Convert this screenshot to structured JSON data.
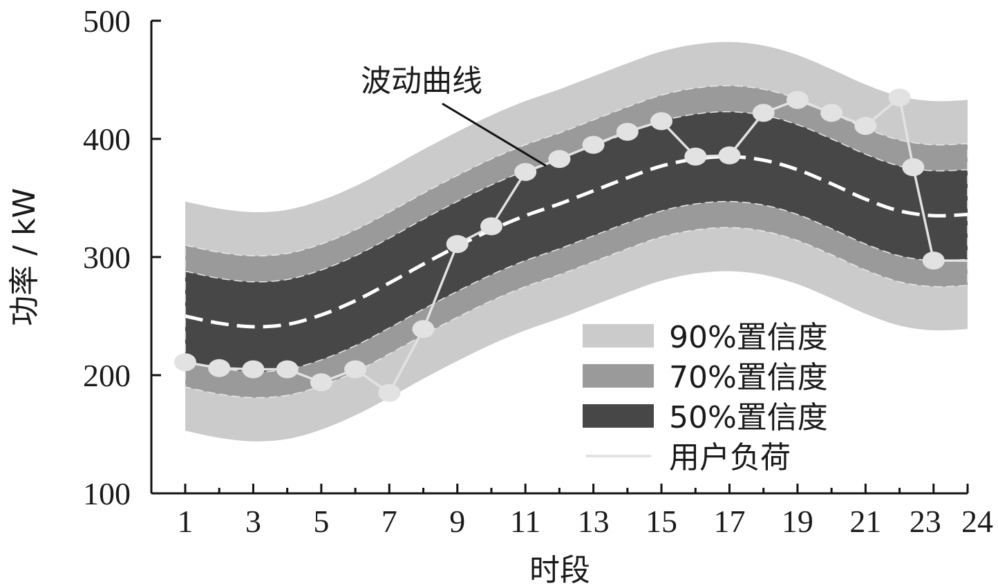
{
  "chart_data": {
    "type": "area",
    "xlabel": "时段",
    "ylabel": "功率 / kW",
    "ylim": [
      100,
      500
    ],
    "xlim": [
      1,
      24
    ],
    "yticks": [
      "100",
      "200",
      "300",
      "400",
      "500"
    ],
    "xticks": [
      {
        "value": 1,
        "label": "1"
      },
      {
        "value": 3,
        "label": "3"
      },
      {
        "value": 5,
        "label": "5"
      },
      {
        "value": 7,
        "label": "7"
      },
      {
        "value": 9,
        "label": "9"
      },
      {
        "value": 11,
        "label": "11"
      },
      {
        "value": 13,
        "label": "13"
      },
      {
        "value": 15,
        "label": "15"
      },
      {
        "value": 17,
        "label": "17"
      },
      {
        "value": 19,
        "label": "19"
      },
      {
        "value": 21,
        "label": "21"
      },
      {
        "value": 23,
        "label": "23"
      },
      {
        "value": 24,
        "label": "24"
      }
    ],
    "x": [
      1,
      2,
      3,
      4,
      5,
      6,
      7,
      8,
      9,
      10,
      11,
      12,
      13,
      14,
      15,
      16,
      17,
      18,
      19,
      20,
      21,
      22,
      23,
      24
    ],
    "center": [
      250,
      244,
      241,
      243,
      251,
      263,
      278,
      294,
      309,
      323,
      335,
      345,
      356,
      367,
      377,
      383,
      385,
      382,
      374,
      362,
      349,
      339,
      335,
      336
    ],
    "bands": [
      {
        "name": "90%置信度",
        "color": "#cbcbcb",
        "half_width": 97
      },
      {
        "name": "70%置信度",
        "color": "#9a9a9a",
        "half_width": 60
      },
      {
        "name": "50%置信度",
        "color": "#474747",
        "half_width": 38
      }
    ],
    "load": {
      "name": "用户负荷",
      "color": "#e2e2e2",
      "points": [
        {
          "x": 1,
          "y": 211
        },
        {
          "x": 2,
          "y": 206
        },
        {
          "x": 3,
          "y": 205
        },
        {
          "x": 4,
          "y": 205
        },
        {
          "x": 5,
          "y": 194
        },
        {
          "x": 6,
          "y": 205
        },
        {
          "x": 7,
          "y": 185
        },
        {
          "x": 8,
          "y": 239
        },
        {
          "x": 9,
          "y": 311
        },
        {
          "x": 10,
          "y": 326
        },
        {
          "x": 11,
          "y": 372
        },
        {
          "x": 12,
          "y": 383
        },
        {
          "x": 13,
          "y": 395
        },
        {
          "x": 14,
          "y": 406
        },
        {
          "x": 15,
          "y": 415
        },
        {
          "x": 16,
          "y": 385
        },
        {
          "x": 17,
          "y": 386
        },
        {
          "x": 18,
          "y": 422
        },
        {
          "x": 19,
          "y": 433
        },
        {
          "x": 20,
          "y": 422
        },
        {
          "x": 21,
          "y": 411
        },
        {
          "x": 22,
          "y": 435
        },
        {
          "x": 22.4,
          "y": 376
        },
        {
          "x": 23,
          "y": 297
        },
        {
          "x": 24,
          "y": 297
        }
      ]
    },
    "annotation": {
      "text": "波动曲线",
      "target_x": 11.6,
      "target_y": 375
    },
    "legend_position": "lower-right"
  }
}
